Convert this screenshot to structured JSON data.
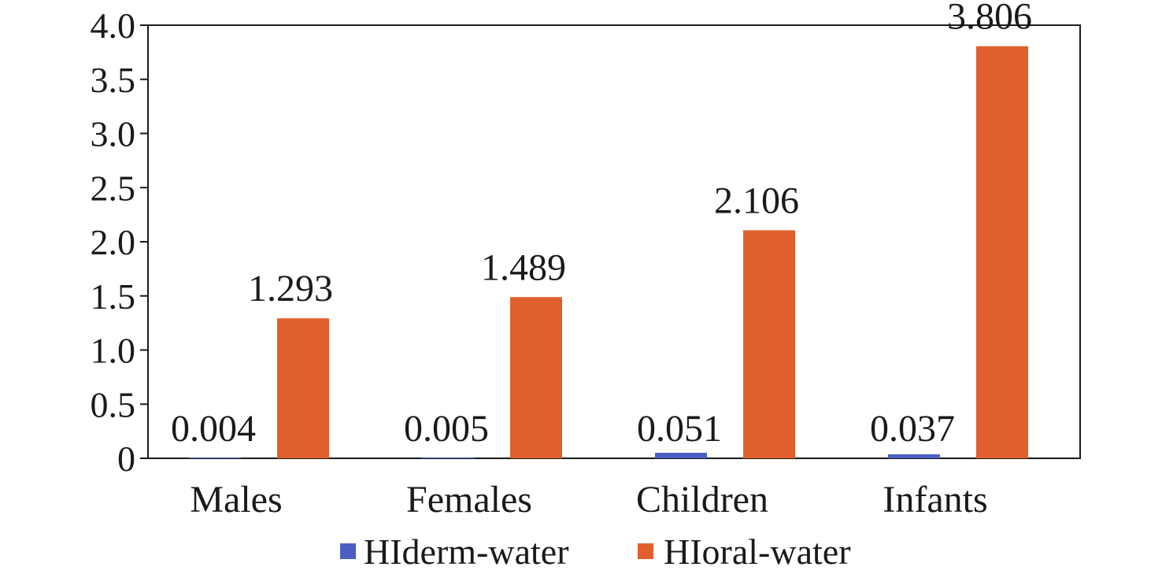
{
  "chart_data": {
    "type": "bar",
    "categories": [
      "Males",
      "Females",
      "Children",
      "Infants"
    ],
    "series": [
      {
        "name": "HIderm-water",
        "color": "#4a5fc1",
        "values": [
          0.004,
          0.005,
          0.051,
          0.037
        ],
        "labels": [
          "0.004",
          "0.005",
          "0.051",
          "0.037"
        ]
      },
      {
        "name": "HIoral-water",
        "color": "#e0602d",
        "values": [
          1.293,
          1.489,
          2.106,
          3.806
        ],
        "labels": [
          "1.293",
          "1.489",
          "2.106",
          "3.806"
        ]
      }
    ],
    "ylim": [
      0,
      4.0
    ],
    "yticks": [
      "0",
      "0.5",
      "1.0",
      "1.5",
      "2.0",
      "2.5",
      "3.0",
      "3.5",
      "4.0"
    ],
    "title": "",
    "xlabel": "",
    "ylabel": "",
    "grid": false,
    "legend_position": "bottom"
  }
}
